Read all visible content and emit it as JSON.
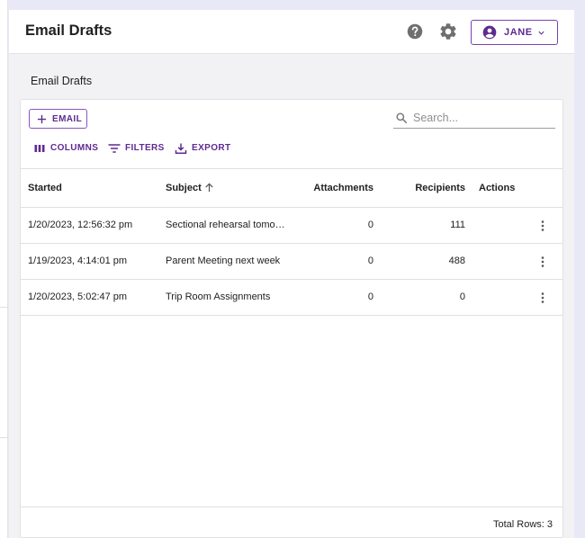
{
  "colors": {
    "accent": "#5e2a91",
    "accent_border": "#8b55c2",
    "background": "#e9e8f6"
  },
  "header": {
    "title": "Email Drafts",
    "help_icon": "help-circle-icon",
    "settings_icon": "gear-icon",
    "user": {
      "name": "JANE",
      "icon": "account-circle-icon",
      "dropdown_icon": "chevron-down-icon"
    }
  },
  "page": {
    "heading": "Email Drafts"
  },
  "toolbar": {
    "email_label": "EMAIL",
    "search_placeholder": "Search...",
    "columns_label": "COLUMNS",
    "filters_label": "FILTERS",
    "export_label": "EXPORT"
  },
  "table": {
    "columns": {
      "started": "Started",
      "subject": "Subject",
      "attachments": "Attachments",
      "recipients": "Recipients",
      "actions": "Actions"
    },
    "sort": {
      "column": "Subject",
      "direction": "ascending",
      "icon": "arrow-up-icon"
    },
    "rows": [
      {
        "started": "1/20/2023, 12:56:32 pm",
        "subject": "Sectional rehearsal tomo…",
        "attachments": "0",
        "recipients": "111"
      },
      {
        "started": "1/19/2023, 4:14:01 pm",
        "subject": "Parent Meeting next week",
        "attachments": "0",
        "recipients": "488"
      },
      {
        "started": "1/20/2023, 5:02:47 pm",
        "subject": "Trip Room Assignments",
        "attachments": "0",
        "recipients": "0"
      }
    ],
    "row_action_icon": "more-vertical-icon"
  },
  "footer": {
    "total_rows": "Total Rows: 3"
  }
}
